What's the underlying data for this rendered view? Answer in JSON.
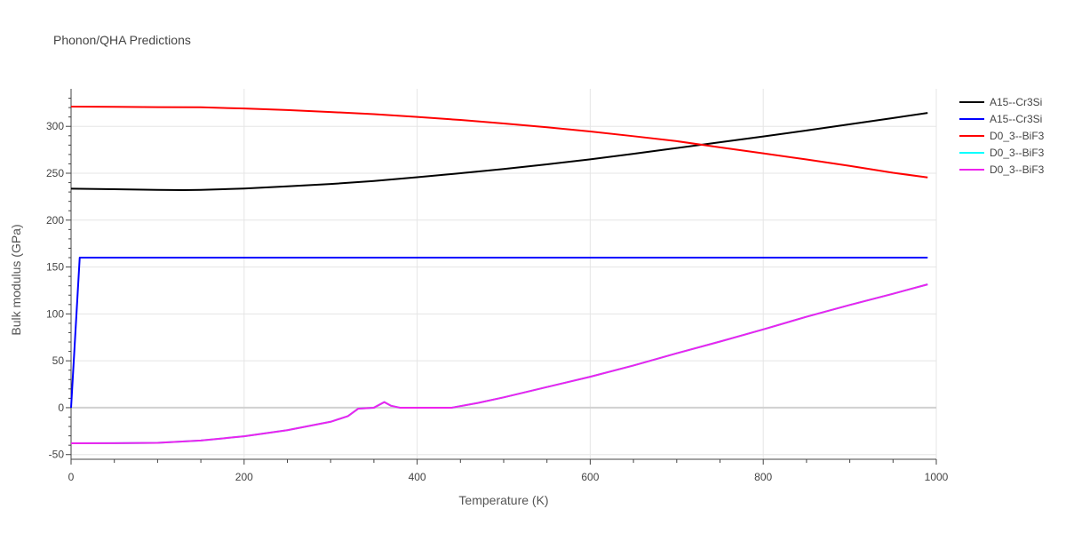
{
  "chart_data": {
    "type": "line",
    "title": "Phonon/QHA Predictions",
    "xlabel": "Temperature (K)",
    "ylabel": "Bulk modulus (GPa)",
    "xlim": [
      0,
      1000
    ],
    "ylim": [
      -55,
      340
    ],
    "x_ticks": [
      0,
      200,
      400,
      600,
      800,
      1000
    ],
    "y_ticks": [
      -50,
      0,
      50,
      100,
      150,
      200,
      250,
      300
    ],
    "grid": true,
    "legend_position": "top-right",
    "series": [
      {
        "name": "A15--Cr3Si",
        "color": "#000000",
        "x": [
          0,
          50,
          100,
          130,
          150,
          200,
          250,
          300,
          350,
          400,
          450,
          500,
          550,
          600,
          650,
          700,
          750,
          800,
          850,
          900,
          950,
          990
        ],
        "y": [
          233.5,
          233,
          232.3,
          232,
          232.3,
          233.7,
          236,
          238.5,
          241.7,
          245.8,
          250,
          254.5,
          259.5,
          264.8,
          270.7,
          276.9,
          283,
          289.2,
          295.6,
          302.2,
          308.9,
          314.3
        ]
      },
      {
        "name": "A15--Cr3Si",
        "color": "#0000ff",
        "x": [
          0,
          10,
          20,
          100,
          200,
          400,
          600,
          800,
          990
        ],
        "y": [
          0,
          160,
          160,
          160,
          160,
          160,
          160,
          160,
          160
        ]
      },
      {
        "name": "D0_3--BiF3",
        "color": "#ff0000",
        "x": [
          0,
          50,
          100,
          150,
          200,
          250,
          300,
          350,
          400,
          450,
          500,
          550,
          600,
          650,
          700,
          750,
          800,
          850,
          900,
          950,
          990
        ],
        "y": [
          321,
          320.8,
          320.5,
          320.3,
          319,
          317.4,
          315.3,
          313,
          310,
          306.8,
          303.1,
          299,
          294.5,
          289.5,
          284.2,
          277.6,
          271.2,
          264.7,
          257.8,
          250.5,
          245.5
        ]
      },
      {
        "name": "D0_3--BiF3",
        "color": "#00ffff",
        "x": [
          0,
          50,
          100,
          150,
          200,
          250,
          300,
          320,
          332,
          350,
          362,
          370,
          380,
          400,
          440,
          470,
          500,
          550,
          600,
          650,
          700,
          750,
          800,
          850,
          900,
          950,
          990
        ],
        "y": [
          -38,
          -37.8,
          -37.5,
          -35,
          -30.5,
          -24,
          -15,
          -9,
          -1,
          0,
          6,
          2,
          0,
          0,
          0,
          5,
          11,
          22,
          33,
          45,
          58,
          70.5,
          83.5,
          97,
          109.5,
          121.5,
          131.5
        ]
      },
      {
        "name": "D0_3--BiF3",
        "color": "#ee22ee",
        "x": [
          0,
          50,
          100,
          150,
          200,
          250,
          300,
          320,
          332,
          350,
          362,
          370,
          380,
          400,
          440,
          470,
          500,
          550,
          600,
          650,
          700,
          750,
          800,
          850,
          900,
          950,
          990
        ],
        "y": [
          -38,
          -37.8,
          -37.5,
          -35,
          -30.5,
          -24,
          -15,
          -9,
          -1,
          0,
          6,
          2,
          0,
          0,
          0,
          5,
          11,
          22,
          33,
          45,
          58,
          70.5,
          83.5,
          97,
          109.5,
          121.5,
          131.5
        ]
      }
    ]
  }
}
